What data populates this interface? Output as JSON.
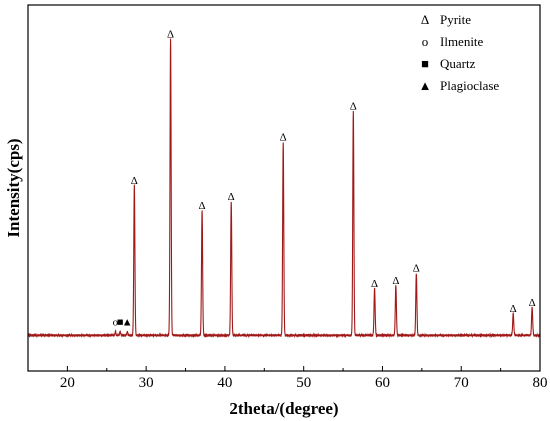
{
  "chart_data": {
    "type": "line",
    "xlabel": "2theta/(degree)",
    "ylabel": "Intensity(cps)",
    "xlim": [
      15,
      80
    ],
    "ylim": [
      0,
      100
    ],
    "x_ticks": [
      20,
      30,
      40,
      50,
      60,
      70,
      80
    ],
    "y_ticks_visible": false,
    "grid": false,
    "line_color": "#a01818",
    "baseline": 1.5,
    "peaks": [
      {
        "x": 28.5,
        "y": 48,
        "phase": "Pyrite"
      },
      {
        "x": 33.1,
        "y": 95,
        "phase": "Pyrite"
      },
      {
        "x": 37.1,
        "y": 40,
        "phase": "Pyrite"
      },
      {
        "x": 40.8,
        "y": 43,
        "phase": "Pyrite"
      },
      {
        "x": 47.4,
        "y": 62,
        "phase": "Pyrite"
      },
      {
        "x": 56.3,
        "y": 72,
        "phase": "Pyrite"
      },
      {
        "x": 59.0,
        "y": 15,
        "phase": "Pyrite"
      },
      {
        "x": 61.7,
        "y": 16,
        "phase": "Pyrite"
      },
      {
        "x": 64.3,
        "y": 20,
        "phase": "Pyrite"
      },
      {
        "x": 76.6,
        "y": 7,
        "phase": "Pyrite"
      },
      {
        "x": 79.0,
        "y": 9,
        "phase": "Pyrite"
      }
    ],
    "minor_markers": [
      {
        "x": 26.1,
        "y": 4,
        "phase": "Ilmenite"
      },
      {
        "x": 26.7,
        "y": 4,
        "phase": "Quartz"
      },
      {
        "x": 27.6,
        "y": 4,
        "phase": "Plagioclase"
      }
    ],
    "legend": {
      "placement": "top-right",
      "entries": [
        {
          "symbol": "Δ",
          "label": "Pyrite"
        },
        {
          "symbol": "o",
          "label": "Ilmenite"
        },
        {
          "symbol": "■",
          "label": "Quartz"
        },
        {
          "symbol": "▲",
          "label": "Plagioclase"
        }
      ]
    }
  }
}
